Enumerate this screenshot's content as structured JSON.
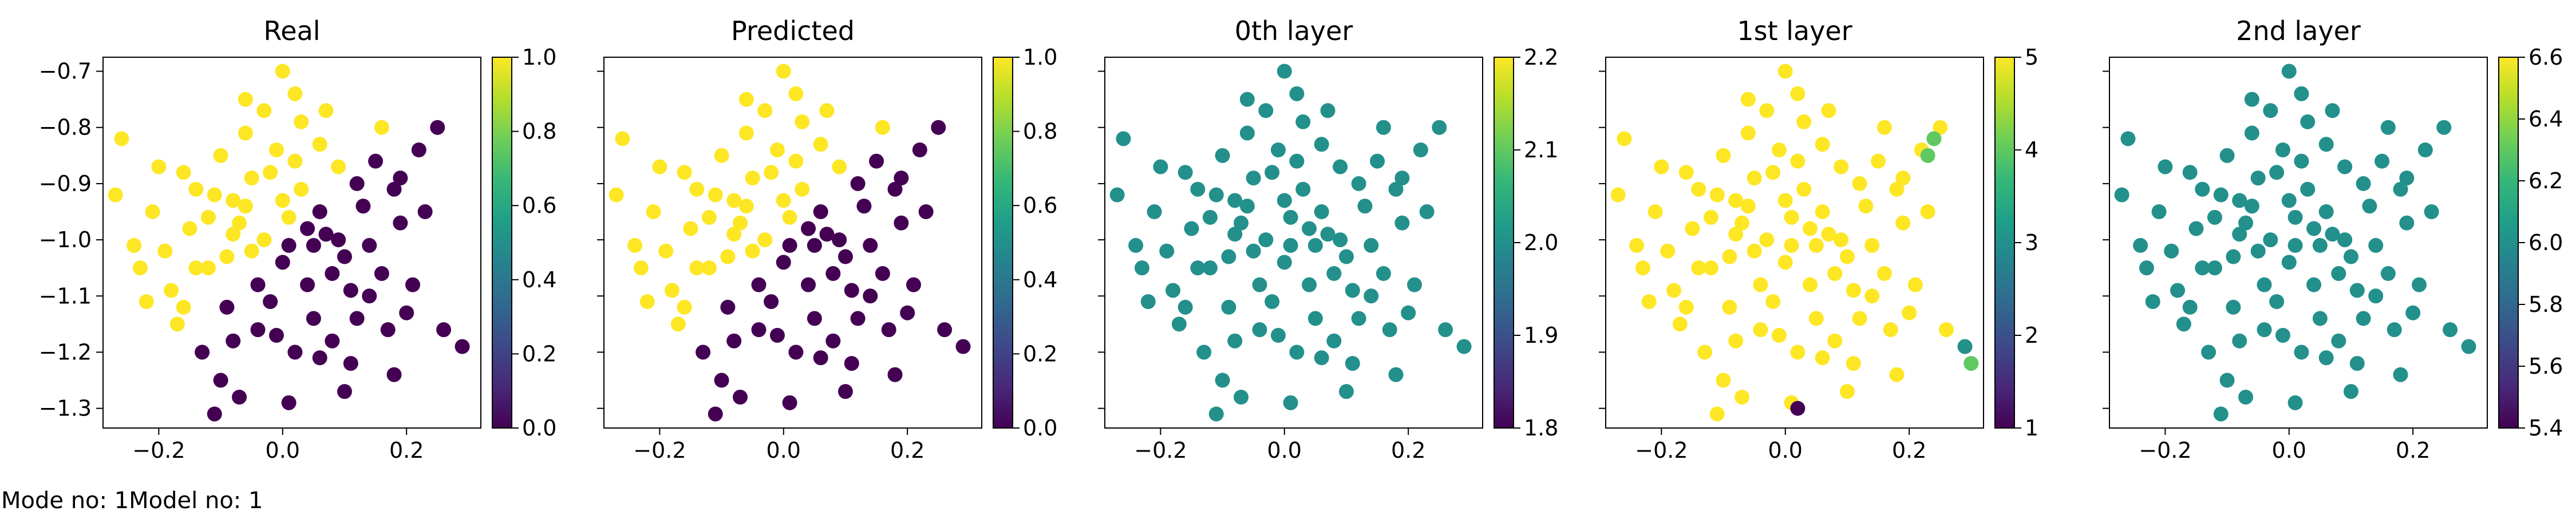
{
  "footer": {
    "mode_label": "Mode no: 1",
    "model_label": "Model no: 1"
  },
  "colormap": {
    "name": "viridis",
    "stops": [
      "#440154",
      "#482878",
      "#3e4989",
      "#31688e",
      "#26828e",
      "#1f9e89",
      "#35b779",
      "#6ece58",
      "#b5de2b",
      "#fde725"
    ]
  },
  "chart_data": [
    {
      "type": "scatter",
      "title": "Real",
      "xlim": [
        -0.29,
        0.32
      ],
      "ylim": [
        -1.335,
        -0.675
      ],
      "xticks": [
        -0.2,
        0.0,
        0.2
      ],
      "xtick_labels": [
        "−0.2",
        "0.0",
        "0.2"
      ],
      "yticks": [
        -0.7,
        -0.8,
        -0.9,
        -1.0,
        -1.1,
        -1.2,
        -1.3
      ],
      "ytick_labels": [
        "−0.7",
        "−0.8",
        "−0.9",
        "−1.0",
        "−1.1",
        "−1.2",
        "−1.3"
      ],
      "color_rule": "split",
      "colorbar": {
        "range": [
          0.0,
          1.0
        ],
        "ticks": [
          0.0,
          0.2,
          0.4,
          0.6,
          0.8,
          1.0
        ],
        "tick_labels": [
          "0.0",
          "0.2",
          "0.4",
          "0.6",
          "0.8",
          "1.0"
        ]
      }
    },
    {
      "type": "scatter",
      "title": "Predicted",
      "xlim": [
        -0.29,
        0.32
      ],
      "ylim": [
        -1.335,
        -0.675
      ],
      "xticks": [
        -0.2,
        0.0,
        0.2
      ],
      "xtick_labels": [
        "−0.2",
        "0.0",
        "0.2"
      ],
      "yticks": [],
      "ytick_labels": [],
      "color_rule": "split",
      "colorbar": {
        "range": [
          0.0,
          1.0
        ],
        "ticks": [
          0.0,
          0.2,
          0.4,
          0.6,
          0.8,
          1.0
        ],
        "tick_labels": [
          "0.0",
          "0.2",
          "0.4",
          "0.6",
          "0.8",
          "1.0"
        ]
      }
    },
    {
      "type": "scatter",
      "title": "0th layer",
      "xlim": [
        -0.29,
        0.32
      ],
      "ylim": [
        -1.335,
        -0.675
      ],
      "xticks": [
        -0.2,
        0.0,
        0.2
      ],
      "xtick_labels": [
        "−0.2",
        "0.0",
        "0.2"
      ],
      "yticks": [],
      "ytick_labels": [],
      "color_rule": "constant",
      "constant_value": 2.0,
      "colorbar": {
        "range": [
          1.8,
          2.2
        ],
        "ticks": [
          1.8,
          1.9,
          2.0,
          2.1,
          2.2
        ],
        "tick_labels": [
          "1.8",
          "1.9",
          "2.0",
          "2.1",
          "2.2"
        ]
      }
    },
    {
      "type": "scatter",
      "title": "1st layer",
      "xlim": [
        -0.29,
        0.32
      ],
      "ylim": [
        -1.335,
        -0.675
      ],
      "xticks": [
        -0.2,
        0.0,
        0.2
      ],
      "xtick_labels": [
        "−0.2",
        "0.0",
        "0.2"
      ],
      "yticks": [],
      "ytick_labels": [],
      "color_rule": "mostly_max",
      "constant_value": 5,
      "outliers": [
        {
          "x": 0.24,
          "y": -0.82,
          "value": 4
        },
        {
          "x": 0.23,
          "y": -0.85,
          "value": 4
        },
        {
          "x": 0.29,
          "y": -1.19,
          "value": 3
        },
        {
          "x": 0.3,
          "y": -1.22,
          "value": 4
        },
        {
          "x": 0.02,
          "y": -1.3,
          "value": 1
        }
      ],
      "colorbar": {
        "range": [
          1,
          5
        ],
        "ticks": [
          1,
          2,
          3,
          4,
          5
        ],
        "tick_labels": [
          "1",
          "2",
          "3",
          "4",
          "5"
        ]
      }
    },
    {
      "type": "scatter",
      "title": "2nd layer",
      "xlim": [
        -0.29,
        0.32
      ],
      "ylim": [
        -1.335,
        -0.675
      ],
      "xticks": [
        -0.2,
        0.0,
        0.2
      ],
      "xtick_labels": [
        "−0.2",
        "0.0",
        "0.2"
      ],
      "yticks": [],
      "ytick_labels": [],
      "color_rule": "constant",
      "constant_value": 6.0,
      "colorbar": {
        "range": [
          5.4,
          6.6
        ],
        "ticks": [
          5.4,
          5.6,
          5.8,
          6.0,
          6.2,
          6.4,
          6.6
        ],
        "tick_labels": [
          "5.4",
          "5.6",
          "5.8",
          "6.0",
          "6.2",
          "6.4",
          "6.6"
        ]
      }
    }
  ],
  "points": [
    [
      -0.15,
      -0.98
    ],
    [
      -0.12,
      -1.05
    ],
    [
      -0.08,
      -0.93
    ],
    [
      -0.05,
      -1.02
    ],
    [
      -0.02,
      -0.88
    ],
    [
      0.01,
      -0.96
    ],
    [
      0.04,
      -1.08
    ],
    [
      0.07,
      -0.99
    ],
    [
      0.1,
      -1.03
    ],
    [
      0.13,
      -0.94
    ],
    [
      0.16,
      -1.06
    ],
    [
      0.19,
      -0.97
    ],
    [
      -0.18,
      -1.09
    ],
    [
      -0.21,
      -0.95
    ],
    [
      -0.24,
      -1.01
    ],
    [
      -0.27,
      -0.92
    ],
    [
      -0.1,
      -0.85
    ],
    [
      -0.06,
      -0.81
    ],
    [
      -0.03,
      -0.77
    ],
    [
      0.0,
      -0.7
    ],
    [
      0.03,
      -0.79
    ],
    [
      0.06,
      -0.83
    ],
    [
      0.09,
      -0.87
    ],
    [
      0.12,
      -0.9
    ],
    [
      0.15,
      -0.86
    ],
    [
      0.18,
      -0.91
    ],
    [
      0.22,
      -0.84
    ],
    [
      0.25,
      -0.8
    ],
    [
      -0.26,
      -0.82
    ],
    [
      -0.2,
      -0.87
    ],
    [
      -0.14,
      -0.91
    ],
    [
      -0.09,
      -1.12
    ],
    [
      -0.04,
      -1.16
    ],
    [
      0.02,
      -1.2
    ],
    [
      0.05,
      -1.14
    ],
    [
      0.08,
      -1.18
    ],
    [
      0.11,
      -1.22
    ],
    [
      0.14,
      -1.1
    ],
    [
      0.2,
      -1.13
    ],
    [
      0.26,
      -1.16
    ],
    [
      0.29,
      -1.19
    ],
    [
      -0.22,
      -1.11
    ],
    [
      -0.17,
      -1.15
    ],
    [
      -0.13,
      -1.2
    ],
    [
      -0.1,
      -1.25
    ],
    [
      -0.07,
      -1.28
    ],
    [
      -0.11,
      -1.31
    ],
    [
      0.01,
      -1.29
    ],
    [
      0.1,
      -1.27
    ],
    [
      0.18,
      -1.24
    ],
    [
      -0.16,
      -0.88
    ],
    [
      -0.11,
      -0.92
    ],
    [
      -0.07,
      -0.97
    ],
    [
      -0.03,
      -1.0
    ],
    [
      0.0,
      -1.04
    ],
    [
      0.03,
      -0.91
    ],
    [
      0.06,
      -0.95
    ],
    [
      0.09,
      -1.0
    ],
    [
      -0.01,
      -0.84
    ],
    [
      -0.05,
      -0.89
    ],
    [
      -0.08,
      -0.99
    ],
    [
      -0.12,
      -0.96
    ],
    [
      0.05,
      -1.01
    ],
    [
      0.08,
      -1.06
    ],
    [
      0.11,
      -1.09
    ],
    [
      0.14,
      -1.01
    ],
    [
      -0.04,
      -1.08
    ],
    [
      -0.02,
      -1.11
    ],
    [
      0.0,
      -0.93
    ],
    [
      0.02,
      -0.86
    ],
    [
      -0.19,
      -1.02
    ],
    [
      -0.23,
      -1.05
    ],
    [
      -0.16,
      -1.12
    ],
    [
      -0.06,
      -0.75
    ],
    [
      0.02,
      -0.74
    ],
    [
      0.07,
      -0.77
    ],
    [
      0.16,
      -0.8
    ],
    [
      0.19,
      -0.89
    ],
    [
      0.23,
      -0.95
    ],
    [
      0.21,
      -1.08
    ],
    [
      0.17,
      -1.16
    ],
    [
      0.12,
      -1.14
    ],
    [
      0.06,
      -1.21
    ],
    [
      -0.01,
      -1.17
    ],
    [
      -0.08,
      -1.18
    ],
    [
      -0.14,
      -1.05
    ],
    [
      -0.09,
      -1.03
    ],
    [
      0.04,
      -0.98
    ],
    [
      0.01,
      -1.01
    ],
    [
      -0.06,
      -0.94
    ]
  ]
}
